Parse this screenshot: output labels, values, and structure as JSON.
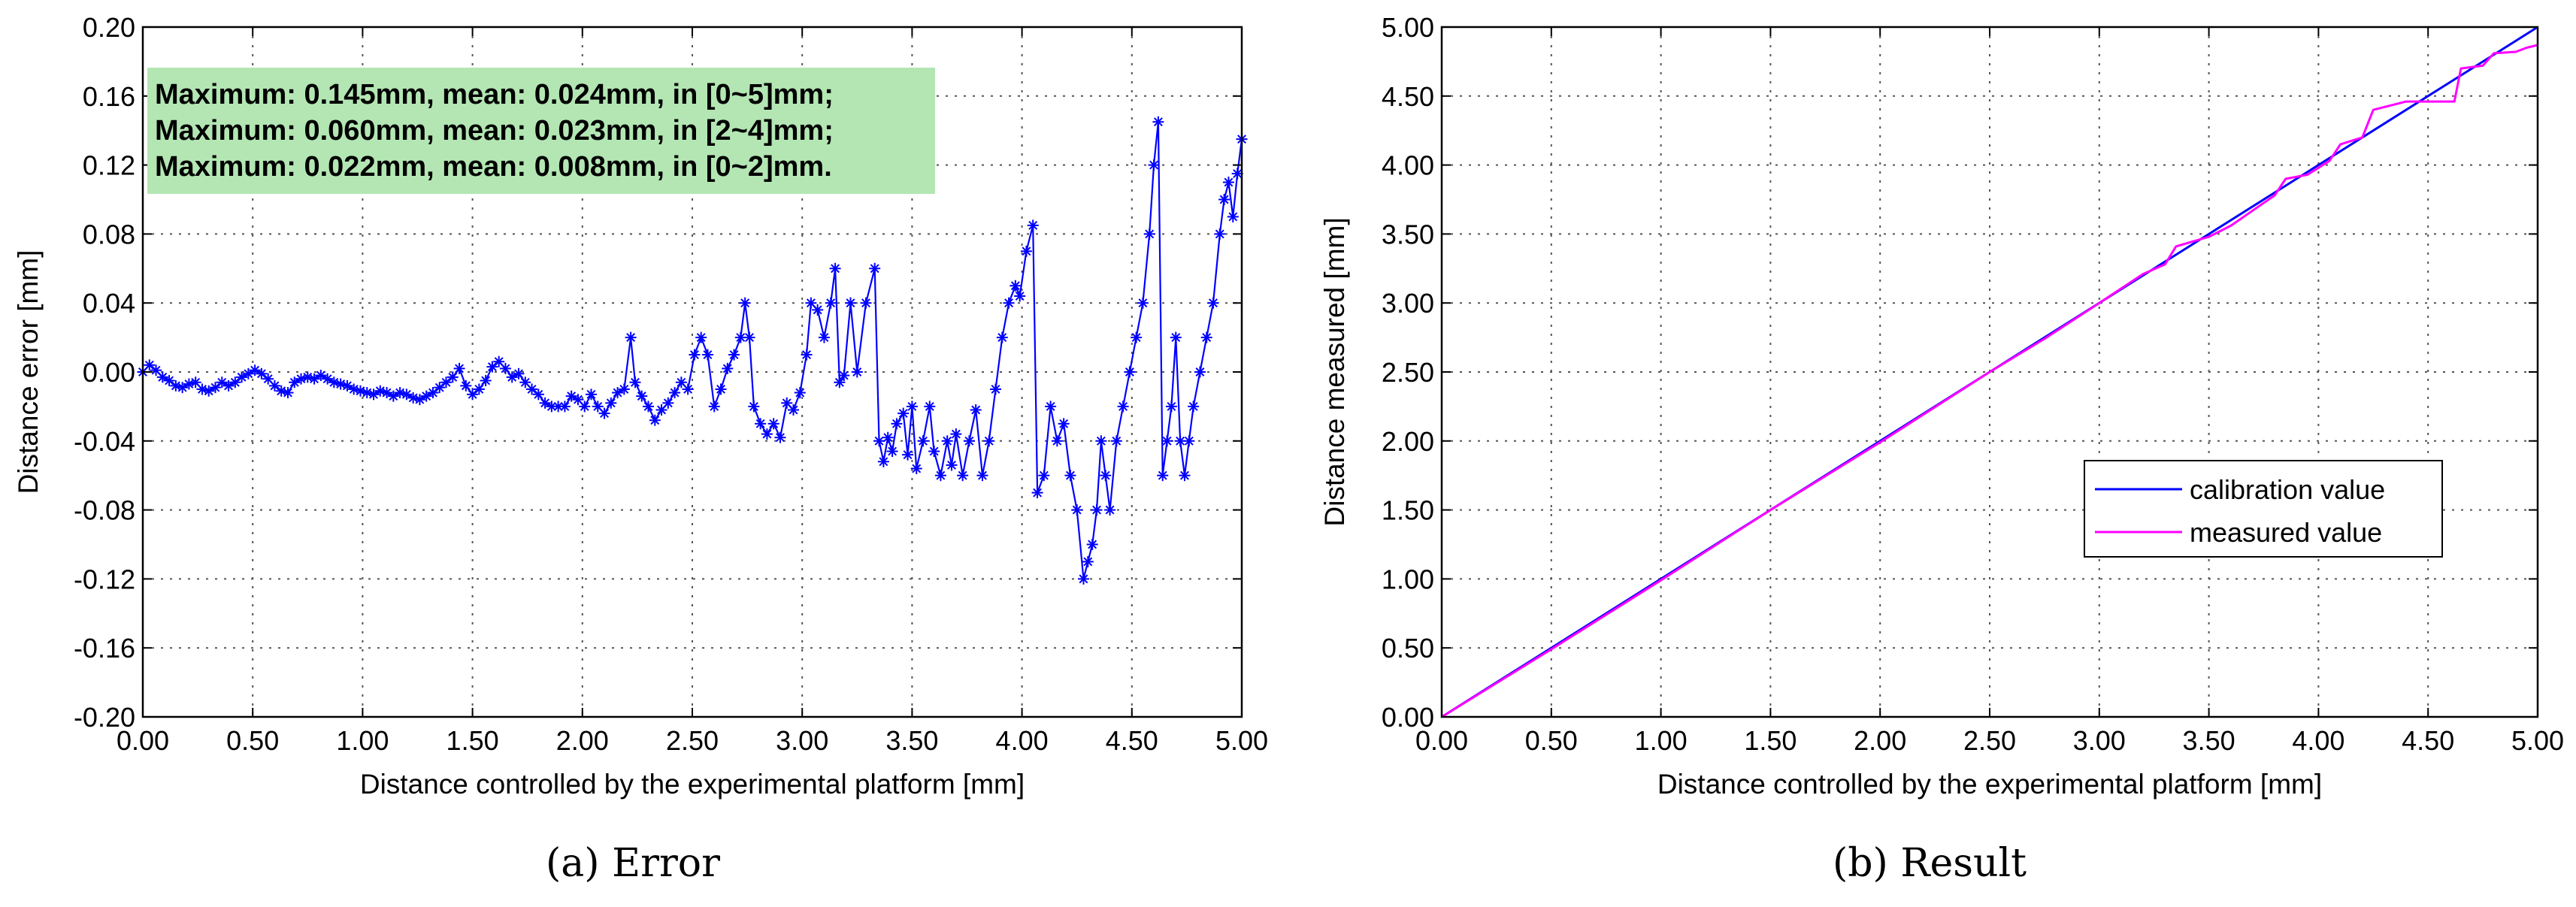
{
  "chart_data": [
    {
      "type": "line",
      "caption": "(a)  Error",
      "xlabel": "Distance controlled by the experimental platform [mm]",
      "ylabel": "Distance error [mm]",
      "xlim": [
        0,
        5
      ],
      "ylim": [
        -0.2,
        0.2
      ],
      "x_ticks": [
        "0.00",
        "0.50",
        "1.00",
        "1.50",
        "2.00",
        "2.50",
        "3.00",
        "3.50",
        "4.00",
        "4.50",
        "5.00"
      ],
      "y_ticks": [
        "0.20",
        "0.16",
        "0.12",
        "0.08",
        "0.04",
        "0.00",
        "-0.04",
        "-0.08",
        "-0.12",
        "-0.16",
        "-0.20"
      ],
      "grid": true,
      "annotation": {
        "lines": [
          "Maximum: 0.145mm, mean: 0.024mm, in [0~5]mm;",
          "Maximum: 0.060mm, mean: 0.023mm, in [2~4]mm;",
          "Maximum: 0.022mm, mean: 0.008mm, in [0~2]mm."
        ],
        "background": "#b3e6b3"
      },
      "series": [
        {
          "color": "#0000ff",
          "marker": "asterisk",
          "points": [
            [
              0.0,
              0.0
            ],
            [
              0.03,
              0.004
            ],
            [
              0.06,
              0.001
            ],
            [
              0.09,
              -0.003
            ],
            [
              0.12,
              -0.005
            ],
            [
              0.15,
              -0.008
            ],
            [
              0.18,
              -0.009
            ],
            [
              0.21,
              -0.007
            ],
            [
              0.24,
              -0.006
            ],
            [
              0.27,
              -0.01
            ],
            [
              0.3,
              -0.011
            ],
            [
              0.33,
              -0.009
            ],
            [
              0.36,
              -0.006
            ],
            [
              0.39,
              -0.008
            ],
            [
              0.42,
              -0.006
            ],
            [
              0.45,
              -0.003
            ],
            [
              0.48,
              -0.001
            ],
            [
              0.51,
              0.001
            ],
            [
              0.54,
              -0.001
            ],
            [
              0.57,
              -0.004
            ],
            [
              0.6,
              -0.008
            ],
            [
              0.63,
              -0.011
            ],
            [
              0.66,
              -0.012
            ],
            [
              0.69,
              -0.006
            ],
            [
              0.72,
              -0.004
            ],
            [
              0.75,
              -0.003
            ],
            [
              0.78,
              -0.004
            ],
            [
              0.81,
              -0.002
            ],
            [
              0.84,
              -0.004
            ],
            [
              0.87,
              -0.006
            ],
            [
              0.9,
              -0.007
            ],
            [
              0.93,
              -0.008
            ],
            [
              0.96,
              -0.01
            ],
            [
              0.99,
              -0.011
            ],
            [
              1.02,
              -0.012
            ],
            [
              1.05,
              -0.013
            ],
            [
              1.08,
              -0.011
            ],
            [
              1.11,
              -0.012
            ],
            [
              1.14,
              -0.014
            ],
            [
              1.17,
              -0.012
            ],
            [
              1.2,
              -0.013
            ],
            [
              1.23,
              -0.015
            ],
            [
              1.26,
              -0.016
            ],
            [
              1.29,
              -0.014
            ],
            [
              1.32,
              -0.012
            ],
            [
              1.35,
              -0.009
            ],
            [
              1.38,
              -0.006
            ],
            [
              1.41,
              -0.003
            ],
            [
              1.44,
              0.002
            ],
            [
              1.47,
              -0.008
            ],
            [
              1.5,
              -0.013
            ],
            [
              1.53,
              -0.01
            ],
            [
              1.56,
              -0.005
            ],
            [
              1.59,
              0.003
            ],
            [
              1.62,
              0.006
            ],
            [
              1.65,
              0.002
            ],
            [
              1.68,
              -0.003
            ],
            [
              1.71,
              -0.001
            ],
            [
              1.74,
              -0.006
            ],
            [
              1.77,
              -0.01
            ],
            [
              1.8,
              -0.013
            ],
            [
              1.83,
              -0.018
            ],
            [
              1.86,
              -0.02
            ],
            [
              1.89,
              -0.02
            ],
            [
              1.92,
              -0.02
            ],
            [
              1.95,
              -0.014
            ],
            [
              1.98,
              -0.016
            ],
            [
              2.01,
              -0.02
            ],
            [
              2.04,
              -0.013
            ],
            [
              2.07,
              -0.02
            ],
            [
              2.1,
              -0.024
            ],
            [
              2.13,
              -0.018
            ],
            [
              2.16,
              -0.012
            ],
            [
              2.19,
              -0.01
            ],
            [
              2.22,
              0.02
            ],
            [
              2.24,
              -0.006
            ],
            [
              2.27,
              -0.014
            ],
            [
              2.3,
              -0.02
            ],
            [
              2.33,
              -0.028
            ],
            [
              2.36,
              -0.022
            ],
            [
              2.39,
              -0.018
            ],
            [
              2.42,
              -0.012
            ],
            [
              2.45,
              -0.006
            ],
            [
              2.48,
              -0.01
            ],
            [
              2.51,
              0.01
            ],
            [
              2.54,
              0.02
            ],
            [
              2.57,
              0.01
            ],
            [
              2.6,
              -0.02
            ],
            [
              2.63,
              -0.01
            ],
            [
              2.66,
              0.002
            ],
            [
              2.69,
              0.01
            ],
            [
              2.72,
              0.02
            ],
            [
              2.74,
              0.04
            ],
            [
              2.76,
              0.02
            ],
            [
              2.78,
              -0.02
            ],
            [
              2.81,
              -0.03
            ],
            [
              2.84,
              -0.036
            ],
            [
              2.87,
              -0.03
            ],
            [
              2.9,
              -0.038
            ],
            [
              2.93,
              -0.018
            ],
            [
              2.96,
              -0.022
            ],
            [
              2.99,
              -0.012
            ],
            [
              3.02,
              0.01
            ],
            [
              3.04,
              0.04
            ],
            [
              3.07,
              0.036
            ],
            [
              3.1,
              0.02
            ],
            [
              3.13,
              0.04
            ],
            [
              3.15,
              0.06
            ],
            [
              3.17,
              -0.006
            ],
            [
              3.19,
              -0.002
            ],
            [
              3.22,
              0.04
            ],
            [
              3.25,
              0.0
            ],
            [
              3.29,
              0.04
            ],
            [
              3.33,
              0.06
            ],
            [
              3.35,
              -0.04
            ],
            [
              3.37,
              -0.052
            ],
            [
              3.39,
              -0.038
            ],
            [
              3.41,
              -0.046
            ],
            [
              3.43,
              -0.03
            ],
            [
              3.46,
              -0.024
            ],
            [
              3.48,
              -0.048
            ],
            [
              3.5,
              -0.02
            ],
            [
              3.52,
              -0.056
            ],
            [
              3.55,
              -0.04
            ],
            [
              3.58,
              -0.02
            ],
            [
              3.6,
              -0.046
            ],
            [
              3.63,
              -0.06
            ],
            [
              3.66,
              -0.04
            ],
            [
              3.68,
              -0.054
            ],
            [
              3.7,
              -0.036
            ],
            [
              3.73,
              -0.06
            ],
            [
              3.76,
              -0.04
            ],
            [
              3.79,
              -0.022
            ],
            [
              3.82,
              -0.06
            ],
            [
              3.85,
              -0.04
            ],
            [
              3.88,
              -0.01
            ],
            [
              3.91,
              0.02
            ],
            [
              3.94,
              0.04
            ],
            [
              3.97,
              0.05
            ],
            [
              3.99,
              0.044
            ],
            [
              4.02,
              0.07
            ],
            [
              4.05,
              0.085
            ],
            [
              4.07,
              -0.07
            ],
            [
              4.1,
              -0.06
            ],
            [
              4.13,
              -0.02
            ],
            [
              4.16,
              -0.04
            ],
            [
              4.19,
              -0.03
            ],
            [
              4.22,
              -0.06
            ],
            [
              4.25,
              -0.08
            ],
            [
              4.28,
              -0.12
            ],
            [
              4.3,
              -0.11
            ],
            [
              4.32,
              -0.1
            ],
            [
              4.34,
              -0.08
            ],
            [
              4.36,
              -0.04
            ],
            [
              4.38,
              -0.06
            ],
            [
              4.4,
              -0.08
            ],
            [
              4.43,
              -0.04
            ],
            [
              4.46,
              -0.02
            ],
            [
              4.49,
              0.0
            ],
            [
              4.52,
              0.02
            ],
            [
              4.55,
              0.04
            ],
            [
              4.58,
              0.08
            ],
            [
              4.6,
              0.12
            ],
            [
              4.62,
              0.145
            ],
            [
              4.64,
              -0.06
            ],
            [
              4.66,
              -0.04
            ],
            [
              4.68,
              -0.02
            ],
            [
              4.7,
              0.02
            ],
            [
              4.72,
              -0.04
            ],
            [
              4.74,
              -0.06
            ],
            [
              4.76,
              -0.04
            ],
            [
              4.78,
              -0.02
            ],
            [
              4.81,
              0.0
            ],
            [
              4.84,
              0.02
            ],
            [
              4.87,
              0.04
            ],
            [
              4.9,
              0.08
            ],
            [
              4.92,
              0.1
            ],
            [
              4.94,
              0.11
            ],
            [
              4.96,
              0.09
            ],
            [
              4.98,
              0.115
            ],
            [
              5.0,
              0.135
            ]
          ]
        }
      ]
    },
    {
      "type": "line",
      "caption": "(b)  Result",
      "xlabel": "Distance controlled by the experimental platform [mm]",
      "ylabel": "Distance measured [mm]",
      "xlim": [
        0,
        5
      ],
      "ylim": [
        0,
        5
      ],
      "x_ticks": [
        "0.00",
        "0.50",
        "1.00",
        "1.50",
        "2.00",
        "2.50",
        "3.00",
        "3.50",
        "4.00",
        "4.50",
        "5.00"
      ],
      "y_ticks": [
        "5.00",
        "4.50",
        "4.00",
        "3.50",
        "3.00",
        "2.50",
        "2.00",
        "1.50",
        "1.00",
        "0.50",
        "0.00"
      ],
      "grid": true,
      "legend_position": "lower-right",
      "series": [
        {
          "name": "calibration value",
          "color": "#0000ff",
          "points": [
            [
              0,
              0
            ],
            [
              5,
              5
            ]
          ]
        },
        {
          "name": "measured value",
          "color": "#ff00ff",
          "points": [
            [
              0.0,
              0.0
            ],
            [
              0.5,
              0.49
            ],
            [
              1.0,
              0.99
            ],
            [
              1.5,
              1.5
            ],
            [
              2.0,
              1.99
            ],
            [
              2.5,
              2.5
            ],
            [
              2.75,
              2.74
            ],
            [
              3.0,
              3.0
            ],
            [
              3.2,
              3.21
            ],
            [
              3.3,
              3.28
            ],
            [
              3.35,
              3.41
            ],
            [
              3.5,
              3.48
            ],
            [
              3.6,
              3.56
            ],
            [
              3.7,
              3.67
            ],
            [
              3.8,
              3.78
            ],
            [
              3.85,
              3.9
            ],
            [
              3.95,
              3.93
            ],
            [
              4.05,
              4.03
            ],
            [
              4.1,
              4.15
            ],
            [
              4.2,
              4.2
            ],
            [
              4.25,
              4.4
            ],
            [
              4.35,
              4.44
            ],
            [
              4.4,
              4.46
            ],
            [
              4.62,
              4.46
            ],
            [
              4.65,
              4.7
            ],
            [
              4.75,
              4.72
            ],
            [
              4.8,
              4.81
            ],
            [
              4.9,
              4.82
            ],
            [
              4.95,
              4.85
            ],
            [
              5.0,
              4.87
            ]
          ]
        }
      ]
    }
  ]
}
